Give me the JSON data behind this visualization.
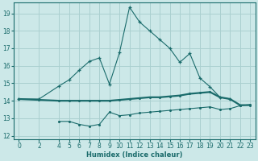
{
  "xlabel": "Humidex (Indice chaleur)",
  "bg_color": "#cce8e8",
  "grid_color": "#aad0d0",
  "line_color": "#1a6b6b",
  "xlim": [
    -0.5,
    23.5
  ],
  "ylim": [
    11.8,
    19.6
  ],
  "xticks": [
    0,
    2,
    4,
    5,
    6,
    7,
    8,
    9,
    10,
    11,
    12,
    13,
    14,
    15,
    16,
    17,
    18,
    19,
    20,
    21,
    22,
    23
  ],
  "yticks": [
    12,
    13,
    14,
    15,
    16,
    17,
    18,
    19
  ],
  "curve1_x": [
    0,
    2,
    4,
    5,
    6,
    7,
    8,
    9,
    10,
    11,
    12,
    13,
    14,
    15,
    16,
    17,
    18,
    19,
    20,
    21
  ],
  "curve1_y": [
    14.1,
    14.1,
    14.85,
    15.2,
    15.75,
    16.25,
    16.45,
    14.95,
    16.75,
    19.35,
    18.5,
    18.0,
    17.5,
    17.0,
    16.2,
    16.7,
    15.3,
    14.8,
    14.2,
    14.1
  ],
  "curve2_x": [
    0,
    2,
    4,
    5,
    6,
    7,
    8,
    9,
    10,
    11,
    12,
    13,
    14,
    15,
    16,
    17,
    18,
    19,
    20,
    21,
    22,
    23
  ],
  "curve2_y": [
    14.1,
    14.05,
    14.0,
    14.0,
    14.0,
    14.0,
    14.0,
    14.0,
    14.05,
    14.1,
    14.15,
    14.2,
    14.2,
    14.25,
    14.3,
    14.4,
    14.45,
    14.5,
    14.2,
    14.1,
    13.75,
    13.75
  ],
  "curve3_x": [
    4,
    5,
    6,
    7,
    8,
    9,
    10,
    11,
    12,
    13,
    14,
    15,
    16,
    17,
    18,
    19,
    20,
    21,
    22,
    23
  ],
  "curve3_y": [
    12.82,
    12.82,
    12.65,
    12.55,
    12.65,
    13.35,
    13.15,
    13.2,
    13.3,
    13.35,
    13.4,
    13.45,
    13.5,
    13.55,
    13.6,
    13.65,
    13.5,
    13.55,
    13.72,
    13.78
  ]
}
